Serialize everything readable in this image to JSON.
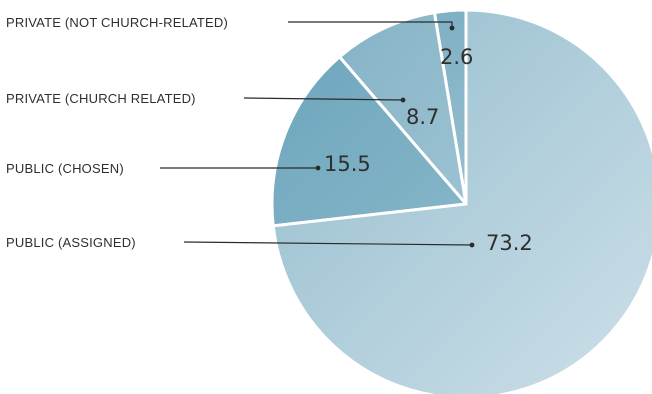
{
  "chart_data": {
    "type": "pie",
    "categories": [
      "PRIVATE (NOT CHURCH-RELATED)",
      "PRIVATE (CHURCH RELATED)",
      "PUBLIC (CHOSEN)",
      "PUBLIC (ASSIGNED)"
    ],
    "values": [
      2.6,
      8.7,
      15.5,
      73.2
    ],
    "value_labels": [
      "2.6",
      "8.7",
      "15.5",
      "73.2"
    ],
    "colors": [
      "#8fb8c9",
      "#8db7c9",
      "#78acc1",
      "#a6c9d8"
    ],
    "legend": "none (leader-line labels on left)"
  }
}
